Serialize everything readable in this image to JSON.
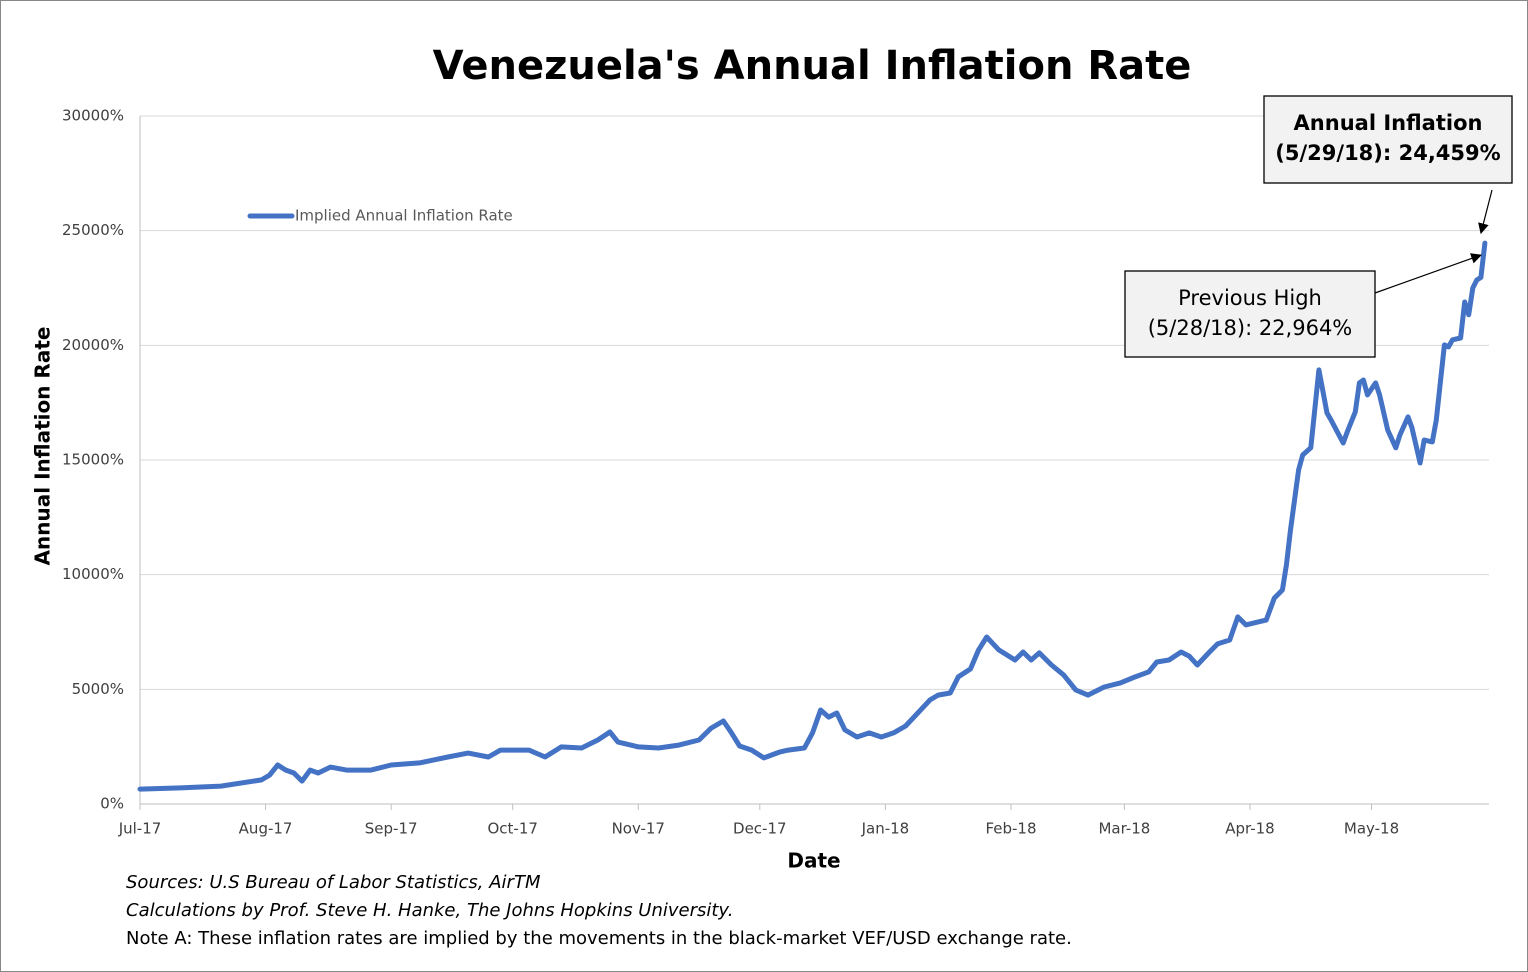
{
  "chart_data": {
    "type": "line",
    "title": "Venezuela's Annual Inflation Rate",
    "x_label": "Date",
    "y_label": "Annual Inflation Rate",
    "legend_position": "top-left",
    "grid": true,
    "xlim": [
      0,
      333
    ],
    "ylim": [
      0,
      30000
    ],
    "xticks": [
      {
        "value": 0,
        "label": "Jul-17"
      },
      {
        "value": 31,
        "label": "Aug-17"
      },
      {
        "value": 62,
        "label": "Sep-17"
      },
      {
        "value": 92,
        "label": "Oct-17"
      },
      {
        "value": 123,
        "label": "Nov-17"
      },
      {
        "value": 153,
        "label": "Dec-17"
      },
      {
        "value": 184,
        "label": "Jan-18"
      },
      {
        "value": 215,
        "label": "Feb-18"
      },
      {
        "value": 243,
        "label": "Mar-18"
      },
      {
        "value": 274,
        "label": "Apr-18"
      },
      {
        "value": 304,
        "label": "May-18"
      }
    ],
    "yticks": [
      {
        "value": 0,
        "label": "0%"
      },
      {
        "value": 5000,
        "label": "5000%"
      },
      {
        "value": 10000,
        "label": "10000%"
      },
      {
        "value": 15000,
        "label": "15000%"
      },
      {
        "value": 20000,
        "label": "20000%"
      },
      {
        "value": 25000,
        "label": "25000%"
      },
      {
        "value": 30000,
        "label": "30000%"
      }
    ],
    "x": [
      0,
      10,
      20,
      30,
      32,
      34,
      36,
      38,
      40,
      42,
      44,
      47,
      51,
      57,
      62,
      69,
      76,
      81,
      86,
      89,
      96,
      100,
      104,
      109,
      113,
      116,
      118,
      123,
      128,
      133,
      138,
      141,
      144,
      146,
      148,
      151,
      154,
      158,
      160,
      164,
      166,
      168,
      170,
      172,
      174,
      177,
      180,
      183,
      186,
      189,
      192,
      195,
      197,
      200,
      202,
      205,
      207,
      209,
      212,
      216,
      218,
      220,
      222,
      225,
      228,
      231,
      234,
      238,
      242,
      245,
      249,
      251,
      254,
      257,
      259,
      261,
      264,
      266,
      269,
      271,
      273,
      276,
      278,
      280,
      282,
      283,
      284,
      286,
      287,
      289,
      291,
      293,
      294,
      297,
      298,
      300,
      301,
      302,
      303,
      305,
      306,
      308,
      310,
      311,
      313,
      314,
      316,
      317,
      319,
      320,
      322,
      323,
      324,
      326,
      327,
      328,
      329,
      330,
      331,
      332
    ],
    "series": [
      {
        "name": "Implied Annual Inflation Rate",
        "color": "#4472c4",
        "values": [
          650,
          700,
          780,
          1050,
          1260,
          1700,
          1480,
          1350,
          1000,
          1480,
          1350,
          1610,
          1480,
          1480,
          1700,
          1790,
          2050,
          2220,
          2050,
          2350,
          2350,
          2050,
          2490,
          2440,
          2790,
          3140,
          2700,
          2490,
          2440,
          2570,
          2790,
          3310,
          3620,
          3100,
          2530,
          2350,
          2010,
          2270,
          2350,
          2440,
          3100,
          4100,
          3790,
          3970,
          3230,
          2920,
          3100,
          2920,
          3100,
          3400,
          3970,
          4540,
          4750,
          4840,
          5540,
          5890,
          6720,
          7280,
          6720,
          6280,
          6630,
          6280,
          6590,
          6060,
          5630,
          4970,
          4750,
          5100,
          5280,
          5500,
          5760,
          6190,
          6280,
          6630,
          6450,
          6060,
          6630,
          6980,
          7150,
          8160,
          7810,
          7940,
          8020,
          8980,
          9330,
          10420,
          11950,
          14570,
          15220,
          15530,
          18930,
          17050,
          16750,
          15740,
          16220,
          17100,
          18360,
          18490,
          17840,
          18360,
          17840,
          16310,
          15530,
          16090,
          16880,
          16400,
          14870,
          15870,
          15790,
          16750,
          20020,
          19930,
          20240,
          20320,
          21890,
          21330,
          22500,
          22850,
          22964,
          24459
        ]
      }
    ],
    "annotations": [
      {
        "lines": [
          "Annual Inflation",
          "(5/29/18): 24,459%"
        ]
      },
      {
        "lines": [
          "Previous High",
          "(5/28/18): 22,964%"
        ]
      }
    ],
    "notes": [
      "Sources: U.S Bureau of Labor Statistics, AirTM",
      "Calculations by Prof. Steve H. Hanke, The Johns Hopkins University.",
      "Note A: These inflation rates are implied by the movements in the black-market VEF/USD exchange rate."
    ]
  }
}
